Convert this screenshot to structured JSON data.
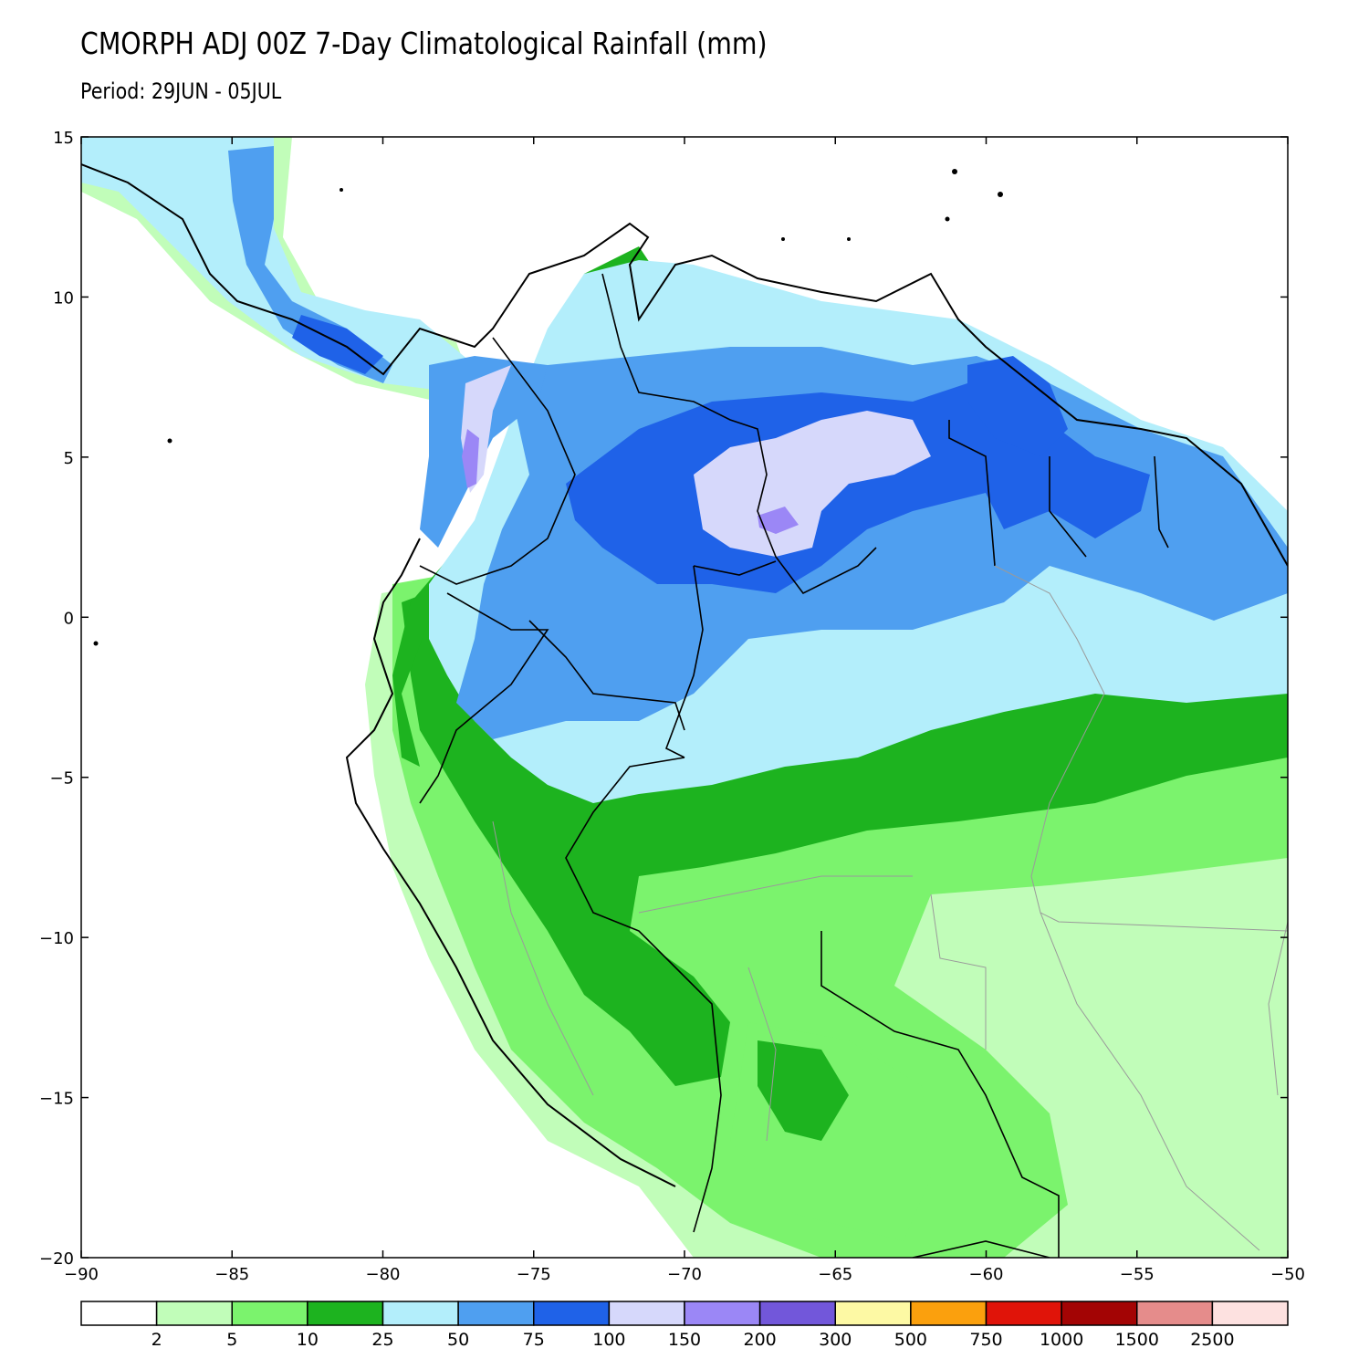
{
  "title": "CMORPH ADJ 00Z 7-Day Climatological Rainfall (mm)",
  "subtitle": "Period: 29JUN - 05JUL",
  "map": {
    "lon_range": [
      -90,
      -50
    ],
    "lat_range": [
      -20,
      15
    ],
    "x_ticks": [
      {
        "value": -90,
        "label": "−90"
      },
      {
        "value": -85,
        "label": "−85"
      },
      {
        "value": -80,
        "label": "−80"
      },
      {
        "value": -75,
        "label": "−75"
      },
      {
        "value": -70,
        "label": "−70"
      },
      {
        "value": -65,
        "label": "−65"
      },
      {
        "value": -60,
        "label": "−60"
      },
      {
        "value": -55,
        "label": "−55"
      },
      {
        "value": -50,
        "label": "−50"
      }
    ],
    "y_ticks": [
      {
        "value": 15,
        "label": "15"
      },
      {
        "value": 10,
        "label": "10"
      },
      {
        "value": 5,
        "label": "5"
      },
      {
        "value": 0,
        "label": "0"
      },
      {
        "value": -5,
        "label": "−5"
      },
      {
        "value": -10,
        "label": "−10"
      },
      {
        "value": -15,
        "label": "−15"
      },
      {
        "value": -20,
        "label": "−20"
      }
    ]
  },
  "legend": {
    "colors": [
      "#ffffff",
      "#c1fdb9",
      "#7bf36d",
      "#1db31f",
      "#b3eefb",
      "#4f9ff0",
      "#1f62e8",
      "#d6d8fb",
      "#9b87f6",
      "#7257da",
      "#fdf9a4",
      "#fba00d",
      "#e01409",
      "#a30404",
      "#e58c8b",
      "#fde1e0"
    ],
    "labels": [
      "2",
      "5",
      "10",
      "25",
      "50",
      "75",
      "100",
      "150",
      "200",
      "300",
      "500",
      "750",
      "1000",
      "1500",
      "2500"
    ]
  }
}
